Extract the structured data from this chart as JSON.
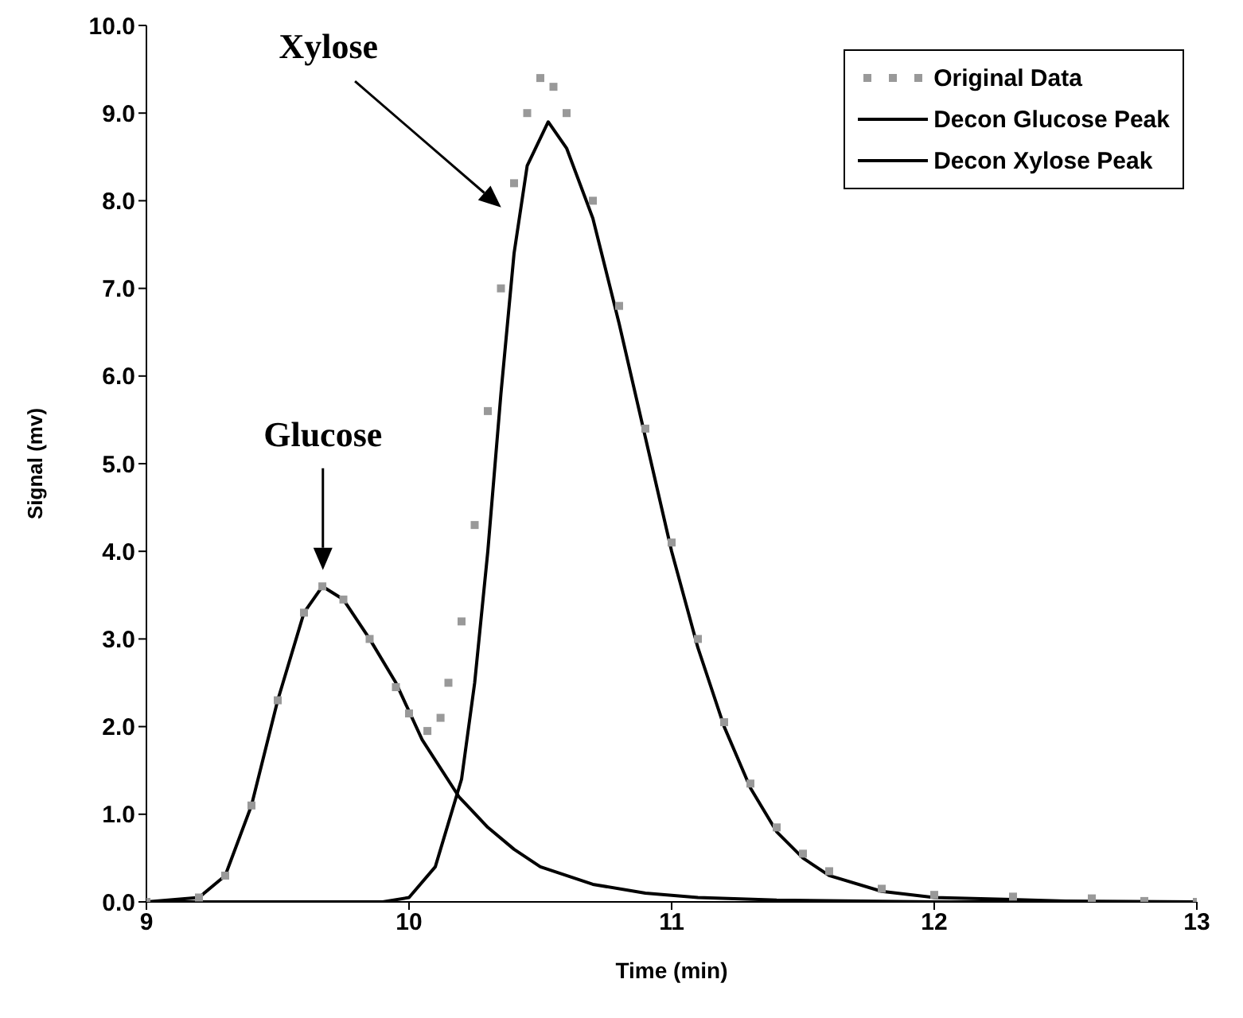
{
  "chart_data": {
    "type": "line",
    "xlabel": "Time (min)",
    "ylabel": "Signal (mv)",
    "xlim": [
      9,
      13
    ],
    "xticks": [
      9,
      10,
      11,
      12,
      13
    ],
    "ylim": [
      0,
      10
    ],
    "yticks": [
      {
        "value": 0,
        "label": "0.0"
      },
      {
        "value": 1,
        "label": "1.0"
      },
      {
        "value": 2,
        "label": "2.0"
      },
      {
        "value": 3,
        "label": "3.0"
      },
      {
        "value": 4,
        "label": "4.0"
      },
      {
        "value": 5,
        "label": "5.0"
      },
      {
        "value": 6,
        "label": "6.0"
      },
      {
        "value": 7,
        "label": "7.0"
      },
      {
        "value": 8,
        "label": "8.0"
      },
      {
        "value": 9,
        "label": "9.0"
      },
      {
        "value": 10,
        "label": "10.0"
      }
    ],
    "grid": false,
    "legend": "top right",
    "annotations": [
      "Glucose",
      "Xylose"
    ],
    "series": [
      {
        "name": "Original Data",
        "type": "scatter",
        "marker": "square",
        "color": "#999999",
        "x": [
          9.0,
          9.2,
          9.3,
          9.4,
          9.5,
          9.6,
          9.67,
          9.75,
          9.85,
          9.95,
          10.0,
          10.07,
          10.12,
          10.15,
          10.2,
          10.25,
          10.3,
          10.35,
          10.4,
          10.45,
          10.5,
          10.55,
          10.6,
          10.7,
          10.8,
          10.9,
          11.0,
          11.1,
          11.2,
          11.3,
          11.4,
          11.5,
          11.6,
          11.8,
          12.0,
          12.3,
          12.6,
          12.8,
          13.0
        ],
        "values": [
          0,
          0.05,
          0.3,
          1.1,
          2.3,
          3.3,
          3.6,
          3.45,
          3.0,
          2.45,
          2.15,
          1.95,
          2.1,
          2.5,
          3.2,
          4.3,
          5.6,
          7.0,
          8.2,
          9.0,
          9.4,
          9.3,
          9.0,
          8.0,
          6.8,
          5.4,
          4.1,
          3.0,
          2.05,
          1.35,
          0.85,
          0.55,
          0.35,
          0.15,
          0.08,
          0.06,
          0.04,
          0.01,
          0
        ]
      },
      {
        "name": "Decon Glucose Peak",
        "line_style": "solid",
        "color": "#000000",
        "x": [
          9.0,
          9.2,
          9.3,
          9.4,
          9.5,
          9.6,
          9.67,
          9.75,
          9.85,
          9.95,
          10.05,
          10.19,
          10.3,
          10.4,
          10.5,
          10.7,
          10.9,
          11.1,
          11.4,
          12.0,
          13.0
        ],
        "values": [
          0,
          0.05,
          0.3,
          1.1,
          2.3,
          3.3,
          3.6,
          3.45,
          3.0,
          2.5,
          1.85,
          1.2,
          0.85,
          0.6,
          0.4,
          0.2,
          0.1,
          0.05,
          0.02,
          0,
          0
        ]
      },
      {
        "name": "Decon Xylose Peak",
        "line_style": "solid",
        "color": "#000000",
        "x": [
          9.0,
          9.9,
          10.0,
          10.1,
          10.2,
          10.25,
          10.3,
          10.35,
          10.4,
          10.45,
          10.53,
          10.6,
          10.7,
          10.8,
          10.9,
          11.0,
          11.1,
          11.2,
          11.3,
          11.4,
          11.5,
          11.6,
          11.8,
          12.0,
          12.5,
          13.0
        ],
        "values": [
          0,
          0,
          0.05,
          0.4,
          1.4,
          2.5,
          4.0,
          5.8,
          7.4,
          8.4,
          8.9,
          8.6,
          7.8,
          6.6,
          5.3,
          4.0,
          2.9,
          2.0,
          1.3,
          0.8,
          0.5,
          0.3,
          0.12,
          0.05,
          0.01,
          0
        ]
      }
    ]
  }
}
